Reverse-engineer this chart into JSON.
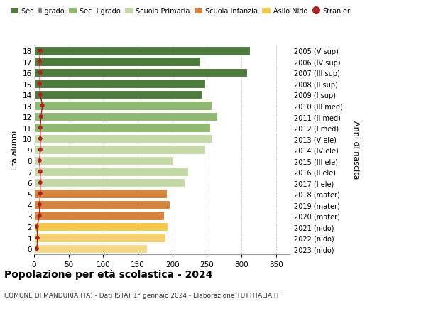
{
  "ages": [
    0,
    1,
    2,
    3,
    4,
    5,
    6,
    7,
    8,
    9,
    10,
    11,
    12,
    13,
    14,
    15,
    16,
    17,
    18
  ],
  "values": [
    163,
    190,
    193,
    188,
    196,
    192,
    218,
    223,
    200,
    248,
    258,
    255,
    265,
    257,
    243,
    248,
    308,
    241,
    312
  ],
  "stranieri": [
    4,
    5,
    4,
    8,
    8,
    9,
    9,
    9,
    8,
    9,
    9,
    9,
    10,
    12,
    9,
    8,
    9,
    8,
    9
  ],
  "right_labels": [
    "2023 (nido)",
    "2022 (nido)",
    "2021 (nido)",
    "2020 (mater)",
    "2019 (mater)",
    "2018 (mater)",
    "2017 (I ele)",
    "2016 (II ele)",
    "2015 (III ele)",
    "2014 (IV ele)",
    "2013 (V ele)",
    "2012 (I med)",
    "2011 (II med)",
    "2010 (III med)",
    "2009 (I sup)",
    "2008 (II sup)",
    "2007 (III sup)",
    "2006 (IV sup)",
    "2005 (V sup)"
  ],
  "bar_colors": [
    "#f5d88a",
    "#f5d070",
    "#f5c94a",
    "#d4843e",
    "#d4843e",
    "#d4843e",
    "#c5d9a8",
    "#c5d9a8",
    "#c5d9a8",
    "#c5d9a8",
    "#c5d9a8",
    "#8fb870",
    "#8fb870",
    "#8fb870",
    "#4e7a3e",
    "#4e7a3e",
    "#4e7a3e",
    "#4e7a3e",
    "#4e7a3e"
  ],
  "legend_items": [
    {
      "label": "Sec. II grado",
      "color": "#4e7a3e"
    },
    {
      "label": "Sec. I grado",
      "color": "#8fb870"
    },
    {
      "label": "Scuola Primaria",
      "color": "#c5d9a8"
    },
    {
      "label": "Scuola Infanzia",
      "color": "#d4843e"
    },
    {
      "label": "Asilo Nido",
      "color": "#f5c94a"
    },
    {
      "label": "Stranieri",
      "color": "#aa2222"
    }
  ],
  "title": "Popolazione per età scolastica - 2024",
  "subtitle": "COMUNE DI MANDURIA (TA) - Dati ISTAT 1° gennaio 2024 - Elaborazione TUTTITALIA.IT",
  "xlabel_right": "Anni di nascita",
  "ylabel": "Età alunni",
  "xlim": [
    0,
    370
  ],
  "xticks": [
    0,
    50,
    100,
    150,
    200,
    250,
    300,
    350
  ],
  "bg_color": "#ffffff",
  "grid_color": "#cccccc",
  "stranieri_color": "#aa2222",
  "bar_height": 0.82
}
